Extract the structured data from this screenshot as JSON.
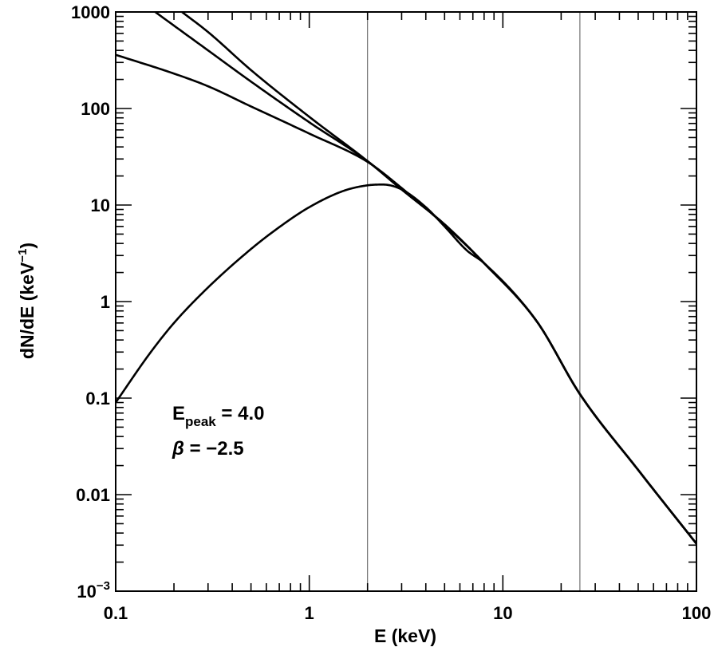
{
  "chart_data": {
    "type": "line",
    "xlabel": "E (keV)",
    "ylabel": "dN/dE (keV",
    "ylabel_sup": "−1",
    "ylabel_close": ")",
    "xscale": "log",
    "yscale": "log",
    "xlim": [
      0.1,
      100
    ],
    "ylim": [
      0.001,
      1000
    ],
    "x_tick_labels": [
      "0.1",
      "1",
      "10",
      "100"
    ],
    "y_tick_labels": [
      {
        "base": "10",
        "sup": "−3"
      },
      {
        "base": "0.01",
        "sup": ""
      },
      {
        "base": "0.1",
        "sup": ""
      },
      {
        "base": "1",
        "sup": ""
      },
      {
        "base": "10",
        "sup": ""
      },
      {
        "base": "100",
        "sup": ""
      },
      {
        "base": "1000",
        "sup": ""
      }
    ],
    "vertical_lines": [
      2.0,
      25.0
    ],
    "annotations": {
      "epeak_symbol": "E",
      "epeak_sub": "peak",
      "epeak_value": " = 4.0",
      "beta_symbol": "β",
      "beta_value": " = −2.5"
    },
    "series": [
      {
        "x": [
          0.16,
          0.3,
          0.5,
          1.0,
          2.0,
          3.0,
          5.0,
          8.0,
          15.0,
          25.0,
          50.0,
          100.0
        ],
        "y": [
          1000,
          400,
          190,
          72,
          28.5,
          14.5,
          6.3,
          2.5,
          0.62,
          0.11,
          0.018,
          0.0031
        ]
      },
      {
        "x": [
          0.22,
          0.3,
          0.5,
          1.0,
          2.0,
          3.0,
          5.0,
          8.0,
          15.0,
          25.0,
          50.0,
          100.0
        ],
        "y": [
          1000,
          620,
          250,
          82,
          28.5,
          14.5,
          6.3,
          2.5,
          0.62,
          0.11,
          0.018,
          0.0031
        ]
      },
      {
        "x": [
          0.1,
          0.2,
          0.3,
          0.5,
          1.0,
          2.0,
          3.0,
          5.0,
          8.0,
          15.0,
          25.0,
          50.0,
          100.0
        ],
        "y": [
          360,
          230,
          170,
          105,
          55,
          28,
          15,
          6.2,
          2.5,
          0.62,
          0.11,
          0.018,
          0.0031
        ]
      },
      {
        "x": [
          0.1,
          0.15,
          0.2,
          0.3,
          0.5,
          0.7,
          1.0,
          1.5,
          2.0,
          2.4,
          3.0,
          4.0,
          5.0,
          6.5,
          8.0,
          15.0,
          25.0,
          50.0,
          100.0
        ],
        "y": [
          0.09,
          0.29,
          0.6,
          1.4,
          3.5,
          5.9,
          9.5,
          14,
          16,
          16.3,
          14.5,
          9.5,
          6.0,
          3.4,
          2.5,
          0.62,
          0.11,
          0.018,
          0.0031
        ]
      }
    ]
  }
}
